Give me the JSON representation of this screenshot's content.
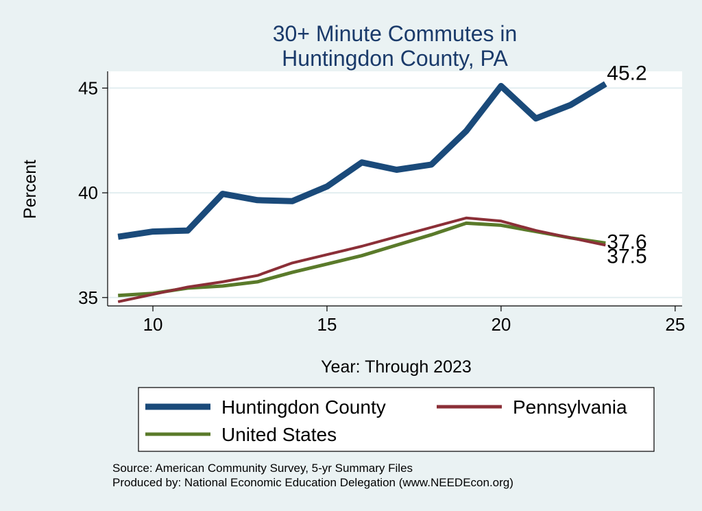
{
  "chart_data": {
    "type": "line",
    "title": [
      "30+ Minute Commutes in",
      "Huntingdon County, PA"
    ],
    "xlabel": "Year: Through 2023",
    "ylabel": "Percent",
    "xlim": [
      8.7,
      25.2
    ],
    "ylim": [
      34.6,
      45.8
    ],
    "xticks": [
      10,
      15,
      20,
      25
    ],
    "yticks": [
      35,
      40,
      45
    ],
    "grid": "horizontal",
    "legend_position": "bottom",
    "x": [
      9,
      10,
      11,
      12,
      13,
      14,
      15,
      16,
      17,
      18,
      19,
      20,
      21,
      22,
      23
    ],
    "series": [
      {
        "name": "Huntingdon County",
        "color": "#1a4a7a",
        "width": 9,
        "values": [
          37.9,
          38.15,
          38.2,
          39.95,
          39.65,
          39.6,
          40.3,
          41.45,
          41.1,
          41.35,
          42.95,
          45.1,
          43.55,
          44.2,
          45.2
        ],
        "end_label": "45.2"
      },
      {
        "name": "Pennsylvania",
        "color": "#8b2f37",
        "width": 4,
        "values": [
          34.8,
          35.15,
          35.5,
          35.75,
          36.05,
          36.65,
          37.05,
          37.45,
          37.9,
          38.35,
          38.8,
          38.65,
          38.2,
          37.85,
          37.5
        ],
        "end_label": "37.5"
      },
      {
        "name": "United States",
        "color": "#5a7a2a",
        "width": 5,
        "values": [
          35.1,
          35.2,
          35.45,
          35.55,
          35.75,
          36.2,
          36.6,
          37.0,
          37.5,
          38.0,
          38.55,
          38.45,
          38.15,
          37.85,
          37.6
        ],
        "end_label": "37.6"
      }
    ]
  },
  "footer": {
    "source": "Source: American Community Survey, 5-yr Summary Files",
    "produced": "Produced by: National Economic Education Delegation (www.NEEDEcon.org)"
  }
}
